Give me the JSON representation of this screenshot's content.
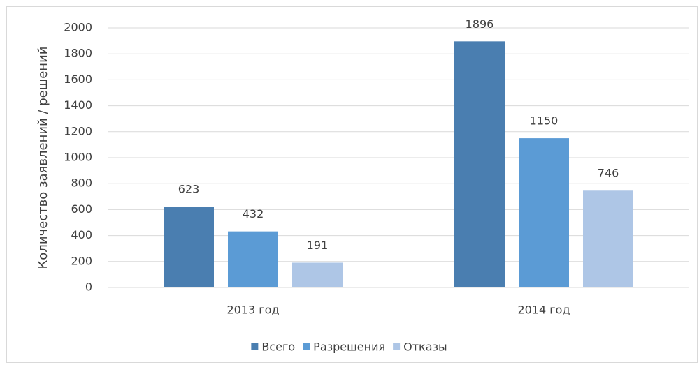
{
  "chart_data": {
    "type": "bar",
    "y_label": "Количество заявлений / решений",
    "categories": [
      "2013 год",
      "2014 год"
    ],
    "series": [
      {
        "name": "Всего",
        "color": "#4a7eb0",
        "values": [
          623,
          1896
        ]
      },
      {
        "name": "Разрешения",
        "color": "#5b9bd5",
        "values": [
          432,
          1150
        ]
      },
      {
        "name": "Отказы",
        "color": "#aec6e6",
        "values": [
          191,
          746
        ]
      }
    ],
    "ylim": [
      0,
      2000
    ],
    "yticks": [
      0,
      200,
      400,
      600,
      800,
      1000,
      1200,
      1400,
      1600,
      1800,
      2000
    ],
    "grid": true,
    "legend": "bottom",
    "data_labels": true
  }
}
